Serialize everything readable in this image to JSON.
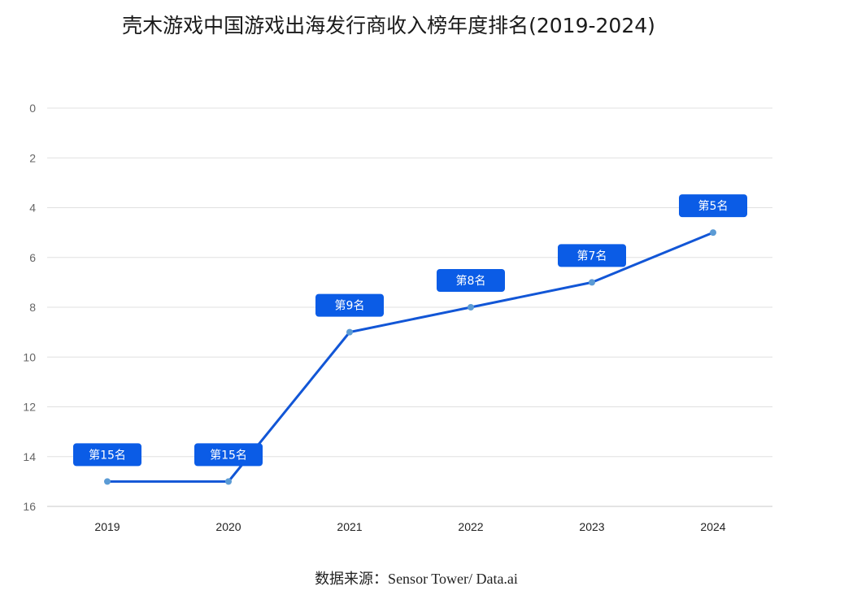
{
  "chart_data": {
    "type": "line",
    "title": "壳木游戏中国游戏出海发行商收入榜年度排名(2019-2024)",
    "categories": [
      "2019",
      "2020",
      "2021",
      "2022",
      "2023",
      "2024"
    ],
    "series": [
      {
        "values": [
          15,
          15,
          9,
          8,
          7,
          5
        ],
        "data_labels": [
          "第15名",
          "第15名",
          "第9名",
          "第8名",
          "第7名",
          "第5名"
        ]
      }
    ],
    "y_ticks": [
      "0",
      "2",
      "4",
      "6",
      "8",
      "10",
      "12",
      "14",
      "16"
    ],
    "ylim": [
      0,
      16
    ],
    "y_inverted": true,
    "grid": true,
    "legend": "none",
    "colors": {
      "line": "#1256d6",
      "marker": "#5b9bd5",
      "label_bg": "#0b5ce6",
      "grid": "#e0e0e0"
    }
  },
  "footer": {
    "source": "数据来源：Sensor Tower/ Data.ai"
  }
}
